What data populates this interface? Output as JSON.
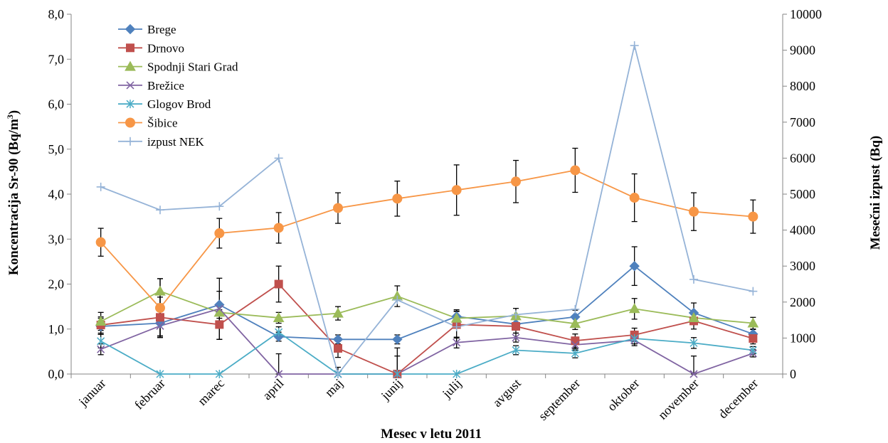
{
  "chart_data": {
    "type": "line",
    "title": "",
    "xlabel": "Mesec v letu 2011",
    "ylabel_left": {
      "main": "Koncentracija Sr-90 (Bq/m",
      "sup": "3",
      "end": ")"
    },
    "ylabel_right": "Mesečni izpust (Bq)",
    "categories": [
      "januar",
      "februar",
      "marec",
      "april",
      "maj",
      "junij",
      "julij",
      "avgust",
      "september",
      "oktober",
      "november",
      "december"
    ],
    "y_left": {
      "min": 0,
      "max": 8,
      "step": 1,
      "ticks": [
        "0,0",
        "1,0",
        "2,0",
        "3,0",
        "4,0",
        "5,0",
        "6,0",
        "7,0",
        "8,0"
      ]
    },
    "y_right": {
      "min": 0,
      "max": 10000,
      "step": 1000,
      "ticks": [
        "0",
        "1000",
        "2000",
        "3000",
        "4000",
        "5000",
        "6000",
        "7000",
        "8000",
        "9000",
        "10000"
      ]
    },
    "grid": false,
    "legend_position": "top-left",
    "series": [
      {
        "name": "Brege",
        "axis": "left",
        "color": "#4f81bd",
        "marker": "diamond",
        "values": [
          1.06,
          1.13,
          1.54,
          0.83,
          0.77,
          0.77,
          1.28,
          1.11,
          1.27,
          2.4,
          1.36,
          0.89
        ],
        "errors": [
          0.18,
          0.28,
          0.3,
          0.1,
          0.1,
          0.1,
          0.15,
          0.12,
          0.15,
          0.43,
          0.22,
          0.1
        ]
      },
      {
        "name": "Drnovo",
        "axis": "left",
        "color": "#c0504d",
        "marker": "square",
        "values": [
          1.09,
          1.26,
          1.1,
          2.0,
          0.57,
          0.0,
          1.1,
          1.06,
          0.74,
          0.87,
          1.18,
          0.79
        ],
        "errors": [
          0.18,
          0.45,
          0.33,
          0.4,
          0.2,
          0.4,
          0.3,
          0.15,
          0.15,
          0.15,
          0.18,
          0.12
        ]
      },
      {
        "name": "Spodnji Stari Grad",
        "axis": "left",
        "color": "#9bbb59",
        "marker": "triangle",
        "values": [
          1.17,
          1.84,
          1.37,
          1.25,
          1.35,
          1.73,
          1.24,
          1.29,
          1.12,
          1.45,
          1.25,
          1.13
        ],
        "errors": [
          0.2,
          0.28,
          0.2,
          0.12,
          0.15,
          0.23,
          0.15,
          0.17,
          0.13,
          0.23,
          0.15,
          0.13
        ]
      },
      {
        "name": "Brežice",
        "axis": "left",
        "color": "#8064a2",
        "marker": "x",
        "values": [
          0.55,
          1.07,
          1.45,
          0.0,
          0.0,
          0.0,
          0.7,
          0.81,
          0.65,
          0.75,
          0.0,
          0.46
        ],
        "errors": [
          0.12,
          0.25,
          0.68,
          0.45,
          0.15,
          0.58,
          0.12,
          0.1,
          0.12,
          0.12,
          0.4,
          0.08
        ]
      },
      {
        "name": "Glogov Brod",
        "axis": "left",
        "color": "#4bacc6",
        "marker": "asterisk",
        "values": [
          0.73,
          0.0,
          0.0,
          0.93,
          0.0,
          0.0,
          0.0,
          0.53,
          0.46,
          0.79,
          0.69,
          0.53
        ],
        "errors": [
          0.15,
          0.0,
          0.0,
          0.12,
          0.0,
          0.0,
          0.0,
          0.1,
          0.1,
          0.12,
          0.12,
          0.08
        ]
      },
      {
        "name": "Šibice",
        "axis": "left",
        "color": "#f79646",
        "marker": "circle",
        "values": [
          2.93,
          1.47,
          3.13,
          3.25,
          3.69,
          3.9,
          4.09,
          4.28,
          4.53,
          3.92,
          3.61,
          3.5
        ],
        "errors": [
          0.31,
          0.65,
          0.33,
          0.34,
          0.34,
          0.39,
          0.56,
          0.47,
          0.49,
          0.53,
          0.42,
          0.37
        ]
      },
      {
        "name": "izpust NEK",
        "axis": "right",
        "color": "#95b3d7",
        "marker": "plus",
        "values": [
          5200,
          4560,
          4660,
          6000,
          0,
          2060,
          1310,
          1650,
          1800,
          9130,
          2630,
          2300
        ],
        "errors": null
      }
    ]
  }
}
